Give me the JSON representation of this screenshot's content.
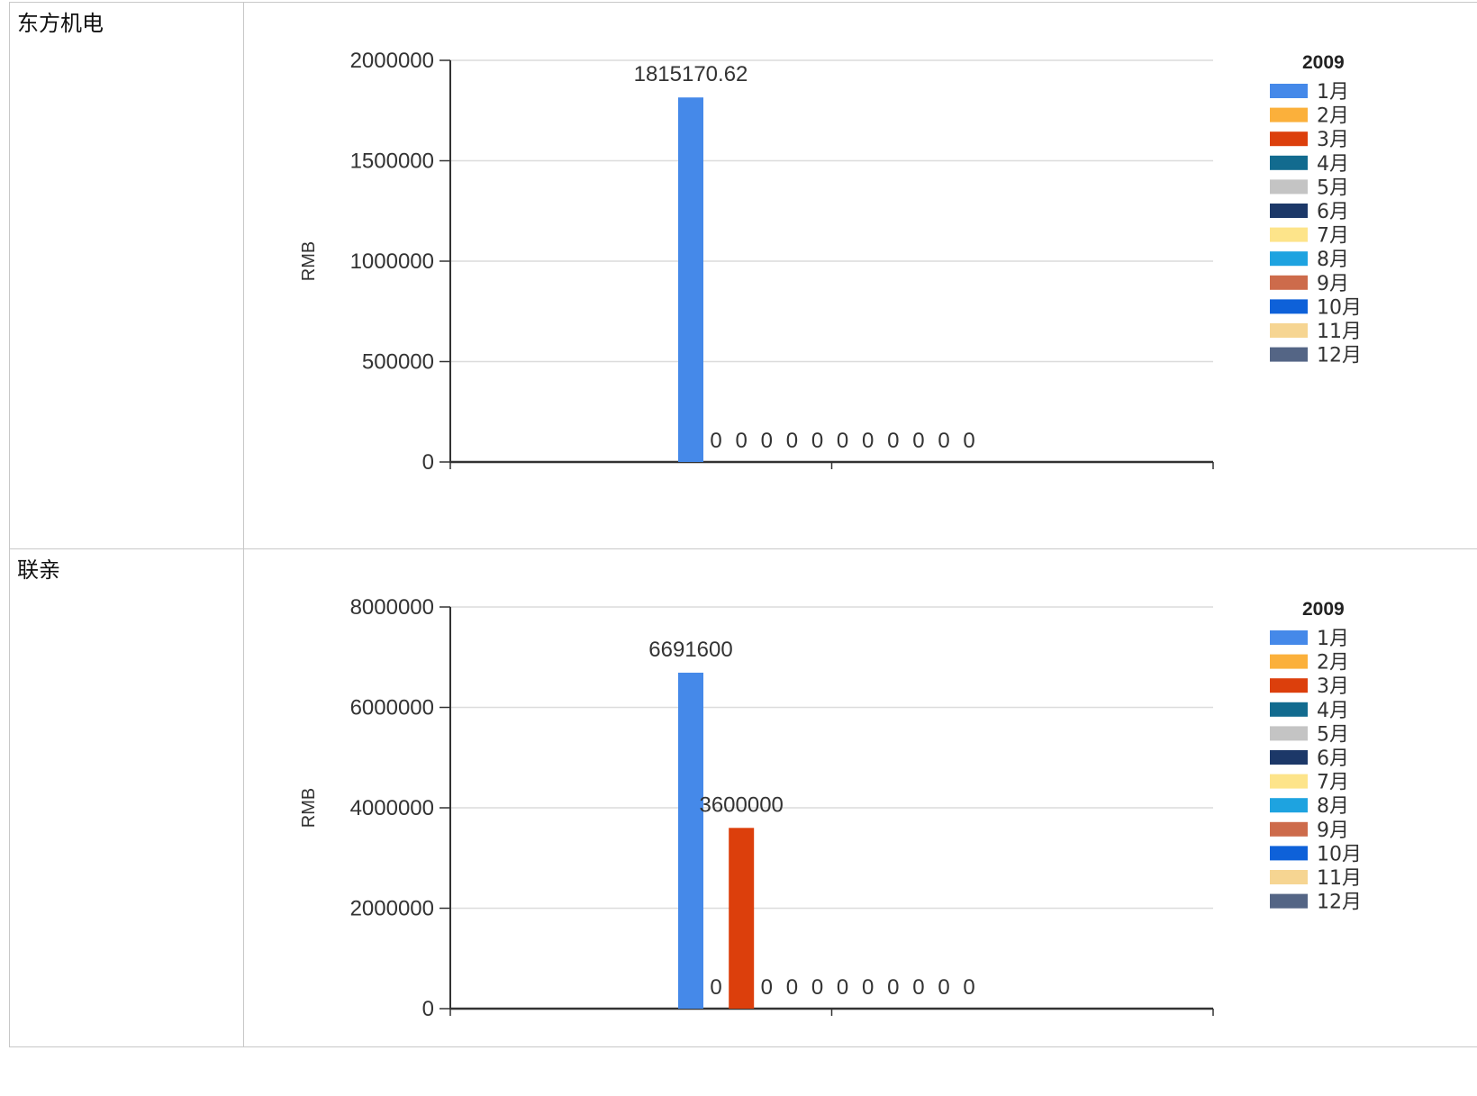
{
  "rows": [
    {
      "name": "东方机电"
    },
    {
      "name": "联亲"
    }
  ],
  "chart_data": [
    {
      "type": "bar",
      "company": "东方机电",
      "title": "",
      "xlabel": "",
      "ylabel": "RMB",
      "ylim": [
        0,
        2000000
      ],
      "yticks": [
        0,
        500000,
        1000000,
        1500000,
        2000000
      ],
      "ytick_labels": [
        "0",
        "500000",
        "1000000",
        "1500000",
        "2000000"
      ],
      "legend_title": "2009",
      "legend_position": "right",
      "grid": true,
      "categories": [
        "2009"
      ],
      "series": [
        {
          "name": "1月",
          "color": "#4589e9",
          "values": [
            1815170.62
          ],
          "label": "1815170.62"
        },
        {
          "name": "2月",
          "color": "#fbb03b",
          "values": [
            0
          ],
          "label": "0"
        },
        {
          "name": "3月",
          "color": "#dc3f0c",
          "values": [
            0
          ],
          "label": "0"
        },
        {
          "name": "4月",
          "color": "#126b8f",
          "values": [
            0
          ],
          "label": "0"
        },
        {
          "name": "5月",
          "color": "#c4c4c4",
          "values": [
            0
          ],
          "label": "0"
        },
        {
          "name": "6月",
          "color": "#1c3868",
          "values": [
            0
          ],
          "label": "0"
        },
        {
          "name": "7月",
          "color": "#fde48a",
          "values": [
            0
          ],
          "label": "0"
        },
        {
          "name": "8月",
          "color": "#1ea3e0",
          "values": [
            0
          ],
          "label": "0"
        },
        {
          "name": "9月",
          "color": "#cd6b4b",
          "values": [
            0
          ],
          "label": "0"
        },
        {
          "name": "10月",
          "color": "#0e61d9",
          "values": [
            0
          ],
          "label": "0"
        },
        {
          "name": "11月",
          "color": "#f6d592",
          "values": [
            0
          ],
          "label": "0"
        },
        {
          "name": "12月",
          "color": "#546585",
          "values": [
            0
          ],
          "label": "0"
        }
      ]
    },
    {
      "type": "bar",
      "company": "联亲",
      "title": "",
      "xlabel": "",
      "ylabel": "RMB",
      "ylim": [
        0,
        8000000
      ],
      "yticks": [
        0,
        2000000,
        4000000,
        6000000,
        8000000
      ],
      "ytick_labels": [
        "0",
        "2000000",
        "4000000",
        "6000000",
        "8000000"
      ],
      "legend_title": "2009",
      "legend_position": "right",
      "grid": true,
      "categories": [
        "2009"
      ],
      "series": [
        {
          "name": "1月",
          "color": "#4589e9",
          "values": [
            6691600
          ],
          "label": "6691600"
        },
        {
          "name": "2月",
          "color": "#fbb03b",
          "values": [
            0
          ],
          "label": "0"
        },
        {
          "name": "3月",
          "color": "#dc3f0c",
          "values": [
            3600000
          ],
          "label": "3600000"
        },
        {
          "name": "4月",
          "color": "#126b8f",
          "values": [
            0
          ],
          "label": "0"
        },
        {
          "name": "5月",
          "color": "#c4c4c4",
          "values": [
            0
          ],
          "label": "0"
        },
        {
          "name": "6月",
          "color": "#1c3868",
          "values": [
            0
          ],
          "label": "0"
        },
        {
          "name": "7月",
          "color": "#fde48a",
          "values": [
            0
          ],
          "label": "0"
        },
        {
          "name": "8月",
          "color": "#1ea3e0",
          "values": [
            0
          ],
          "label": "0"
        },
        {
          "name": "9月",
          "color": "#cd6b4b",
          "values": [
            0
          ],
          "label": "0"
        },
        {
          "name": "10月",
          "color": "#0e61d9",
          "values": [
            0
          ],
          "label": "0"
        },
        {
          "name": "11月",
          "color": "#f6d592",
          "values": [
            0
          ],
          "label": "0"
        },
        {
          "name": "12月",
          "color": "#546585",
          "values": [
            0
          ],
          "label": "0"
        }
      ]
    }
  ]
}
